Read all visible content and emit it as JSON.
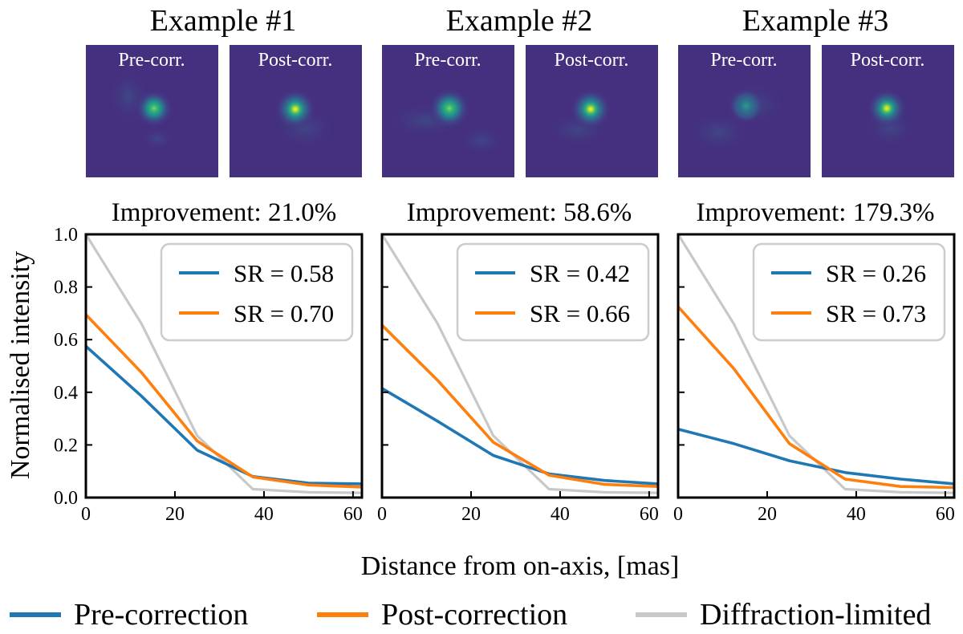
{
  "figure": {
    "xlabel": "Distance from on-axis, [mas]",
    "ylabel": "Normalised intensity"
  },
  "colors": {
    "pre": "#1f77b4",
    "post": "#ff7f0e",
    "diff": "#c8c8c8"
  },
  "legend": [
    {
      "key": "pre",
      "label": "Pre-correction"
    },
    {
      "key": "post",
      "label": "Post-correction"
    },
    {
      "key": "diff",
      "label": "Diffraction-limited"
    }
  ],
  "image_labels": {
    "pre": "Pre-corr.",
    "post": "Post-corr."
  },
  "chart_data": [
    {
      "type": "line",
      "title": "Example #1",
      "subtitle": "Improvement: 21.0%",
      "xlim": [
        0,
        62
      ],
      "ylim": [
        0,
        1.0
      ],
      "xticks": [
        0,
        20,
        40,
        60
      ],
      "yticks": [
        "0.0",
        "0.2",
        "0.4",
        "0.6",
        "0.8",
        "1.0"
      ],
      "x": [
        0,
        12.5,
        25,
        37.5,
        50,
        62
      ],
      "series": [
        {
          "key": "pre",
          "name": "SR = 0.58",
          "values": [
            0.575,
            0.385,
            0.18,
            0.08,
            0.055,
            0.052
          ]
        },
        {
          "key": "post",
          "name": "SR = 0.70",
          "values": [
            0.695,
            0.475,
            0.215,
            0.078,
            0.048,
            0.04
          ]
        },
        {
          "key": "diff",
          "values": [
            1.0,
            0.66,
            0.235,
            0.032,
            0.02,
            0.018
          ]
        }
      ]
    },
    {
      "type": "line",
      "title": "Example #2",
      "subtitle": "Improvement: 58.6%",
      "xlim": [
        0,
        62
      ],
      "ylim": [
        0,
        1.0
      ],
      "xticks": [
        0,
        20,
        40,
        60
      ],
      "yticks": [
        "0.0",
        "0.2",
        "0.4",
        "0.6",
        "0.8",
        "1.0"
      ],
      "x": [
        0,
        12.5,
        25,
        37.5,
        50,
        62
      ],
      "series": [
        {
          "key": "pre",
          "name": "SR = 0.42",
          "values": [
            0.415,
            0.29,
            0.16,
            0.09,
            0.065,
            0.052
          ]
        },
        {
          "key": "post",
          "name": "SR = 0.66",
          "values": [
            0.655,
            0.445,
            0.21,
            0.085,
            0.05,
            0.042
          ]
        },
        {
          "key": "diff",
          "values": [
            1.0,
            0.66,
            0.235,
            0.032,
            0.02,
            0.018
          ]
        }
      ]
    },
    {
      "type": "line",
      "title": "Example #3",
      "subtitle": "Improvement: 179.3%",
      "xlim": [
        0,
        62
      ],
      "ylim": [
        0,
        1.0
      ],
      "xticks": [
        0,
        20,
        40,
        60
      ],
      "yticks": [
        "0.0",
        "0.2",
        "0.4",
        "0.6",
        "0.8",
        "1.0"
      ],
      "x": [
        0,
        12.5,
        25,
        37.5,
        50,
        62
      ],
      "series": [
        {
          "key": "pre",
          "name": "SR = 0.26",
          "values": [
            0.26,
            0.205,
            0.14,
            0.095,
            0.07,
            0.052
          ]
        },
        {
          "key": "post",
          "name": "SR = 0.73",
          "values": [
            0.725,
            0.49,
            0.205,
            0.07,
            0.042,
            0.038
          ]
        },
        {
          "key": "diff",
          "values": [
            1.0,
            0.66,
            0.235,
            0.032,
            0.02,
            0.018
          ]
        }
      ]
    }
  ]
}
